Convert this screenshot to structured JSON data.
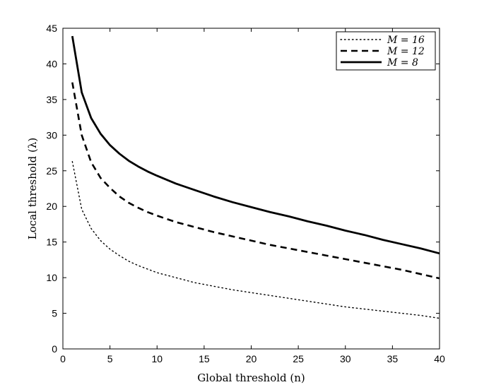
{
  "chart_data": {
    "type": "line",
    "title": "",
    "xlabel": "Global threshold (n)",
    "ylabel": "Local threshold (λ)",
    "xlim": [
      0,
      40
    ],
    "ylim": [
      0,
      45
    ],
    "xticks": [
      0,
      5,
      10,
      15,
      20,
      25,
      30,
      35,
      40
    ],
    "yticks": [
      0,
      5,
      10,
      15,
      20,
      25,
      30,
      35,
      40,
      45
    ],
    "grid": false,
    "legend_position": "top-right",
    "series": [
      {
        "name": "M = 16",
        "line_style": "dotted",
        "color": "#000000",
        "x": [
          1,
          2,
          3,
          4,
          5,
          6,
          7,
          8,
          9,
          10,
          12,
          14,
          16,
          18,
          20,
          22,
          24,
          26,
          28,
          30,
          32,
          34,
          36,
          38,
          40
        ],
        "y": [
          26.3,
          19.6,
          16.9,
          15.2,
          14.0,
          13.1,
          12.3,
          11.7,
          11.2,
          10.7,
          10.0,
          9.3,
          8.8,
          8.3,
          7.9,
          7.5,
          7.1,
          6.7,
          6.3,
          5.9,
          5.6,
          5.3,
          5.0,
          4.7,
          4.3
        ]
      },
      {
        "name": "M = 12",
        "line_style": "dashed",
        "color": "#000000",
        "x": [
          1,
          2,
          3,
          4,
          5,
          6,
          7,
          8,
          9,
          10,
          12,
          14,
          16,
          18,
          20,
          22,
          24,
          26,
          28,
          30,
          32,
          34,
          36,
          38,
          40
        ],
        "y": [
          37.4,
          30.0,
          26.2,
          24.0,
          22.6,
          21.4,
          20.5,
          19.8,
          19.2,
          18.7,
          17.8,
          17.1,
          16.4,
          15.8,
          15.2,
          14.6,
          14.1,
          13.6,
          13.1,
          12.6,
          12.1,
          11.6,
          11.1,
          10.5,
          9.9
        ]
      },
      {
        "name": "M = 8",
        "line_style": "solid",
        "color": "#000000",
        "x": [
          1,
          2,
          3,
          4,
          5,
          6,
          7,
          8,
          9,
          10,
          12,
          14,
          16,
          18,
          20,
          22,
          24,
          26,
          28,
          30,
          32,
          34,
          36,
          38,
          40
        ],
        "y": [
          43.9,
          36.0,
          32.4,
          30.2,
          28.6,
          27.4,
          26.4,
          25.6,
          24.9,
          24.3,
          23.2,
          22.3,
          21.4,
          20.6,
          19.9,
          19.2,
          18.6,
          17.9,
          17.3,
          16.6,
          16.0,
          15.3,
          14.7,
          14.1,
          13.4
        ]
      }
    ]
  }
}
